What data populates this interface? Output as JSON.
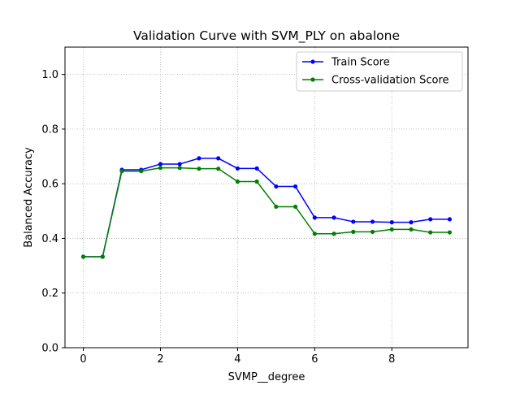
{
  "chart_data": {
    "type": "line",
    "title": "Validation Curve with SVM_PLY on abalone",
    "xlabel": "SVMP__degree",
    "ylabel": "Balanced Accuracy",
    "xlim": [
      -0.475,
      9.975
    ],
    "ylim": [
      0.0,
      1.1
    ],
    "x_ticks": [
      0,
      2,
      4,
      6,
      8
    ],
    "y_ticks": [
      0.0,
      0.2,
      0.4,
      0.6,
      0.8,
      1.0
    ],
    "x_tick_labels": [
      "0",
      "2",
      "4",
      "6",
      "8"
    ],
    "y_tick_labels": [
      "0.0",
      "0.2",
      "0.4",
      "0.6",
      "0.8",
      "1.0"
    ],
    "grid": true,
    "legend_position": "top-right",
    "x": [
      0,
      0.5,
      1,
      1.5,
      2,
      2.5,
      3,
      3.5,
      4,
      4.5,
      5,
      5.5,
      6,
      6.5,
      7,
      7.5,
      8,
      8.5,
      9,
      9.5
    ],
    "series": [
      {
        "name": "Train Score",
        "color": "#0000ff",
        "values": [
          0.333,
          0.333,
          0.651,
          0.651,
          0.672,
          0.672,
          0.693,
          0.693,
          0.656,
          0.656,
          0.59,
          0.59,
          0.476,
          0.476,
          0.461,
          0.461,
          0.459,
          0.459,
          0.47,
          0.47
        ]
      },
      {
        "name": "Cross-validation Score",
        "color": "#008000",
        "values": [
          0.333,
          0.333,
          0.646,
          0.646,
          0.658,
          0.658,
          0.655,
          0.655,
          0.608,
          0.608,
          0.516,
          0.516,
          0.417,
          0.417,
          0.424,
          0.424,
          0.433,
          0.433,
          0.422,
          0.422
        ]
      }
    ]
  }
}
